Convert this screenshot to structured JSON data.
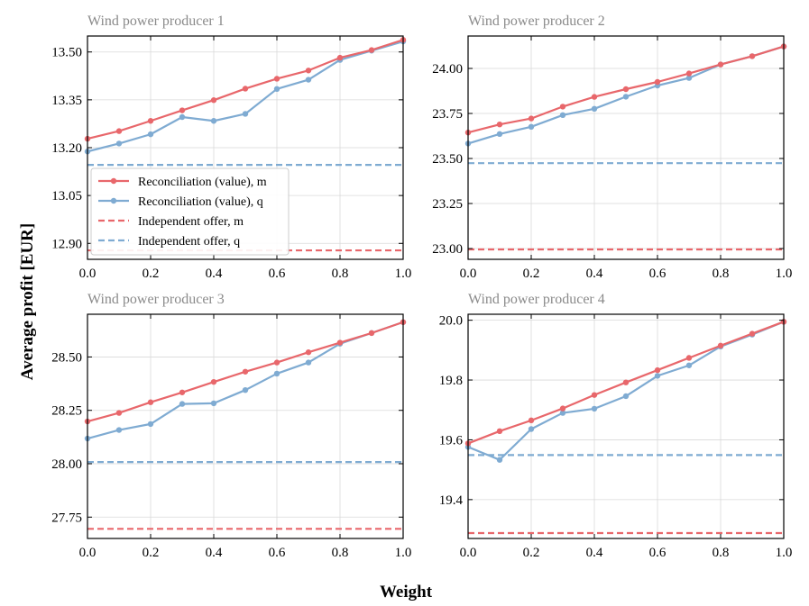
{
  "figure": {
    "ylabel": "Average profit [EUR]",
    "xlabel": "Weight"
  },
  "colors": {
    "m": "#e8676b",
    "q": "#7fabd2",
    "grid": "#d9d9d9",
    "title": "#8a8a8a"
  },
  "legend": {
    "items": [
      {
        "label": "Reconciliation (value), m",
        "style": "solid-marker",
        "color": "#e8676b"
      },
      {
        "label": "Reconciliation (value), q",
        "style": "solid-marker",
        "color": "#7fabd2"
      },
      {
        "label": "Independent offer, m",
        "style": "dashed",
        "color": "#e8676b"
      },
      {
        "label": "Independent offer, q",
        "style": "dashed",
        "color": "#7fabd2"
      }
    ]
  },
  "chart_data": [
    {
      "type": "line",
      "title": "Wind power producer 1",
      "x": [
        0.0,
        0.1,
        0.2,
        0.3,
        0.4,
        0.5,
        0.6,
        0.7,
        0.8,
        0.9,
        1.0
      ],
      "xlim": [
        0.0,
        1.0
      ],
      "xticks": [
        "0.0",
        "0.2",
        "0.4",
        "0.6",
        "0.8",
        "1.0"
      ],
      "ylim": [
        12.85,
        13.55
      ],
      "yticks": [
        "12.90",
        "13.05",
        "13.20",
        "13.35",
        "13.50"
      ],
      "series": [
        {
          "name": "Reconciliation (value), m",
          "values": [
            13.228,
            13.252,
            13.284,
            13.317,
            13.349,
            13.385,
            13.416,
            13.442,
            13.482,
            13.506,
            13.538
          ]
        },
        {
          "name": "Reconciliation (value), q",
          "values": [
            13.188,
            13.213,
            13.242,
            13.296,
            13.284,
            13.306,
            13.384,
            13.413,
            13.475,
            13.504,
            13.533
          ]
        }
      ],
      "hlines": [
        {
          "name": "Independent offer, m",
          "value": 12.878
        },
        {
          "name": "Independent offer, q",
          "value": 13.146
        }
      ],
      "has_legend": true
    },
    {
      "type": "line",
      "title": "Wind power producer 2",
      "x": [
        0.0,
        0.1,
        0.2,
        0.3,
        0.4,
        0.5,
        0.6,
        0.7,
        0.8,
        0.9,
        1.0
      ],
      "xlim": [
        0.0,
        1.0
      ],
      "xticks": [
        "0.0",
        "0.2",
        "0.4",
        "0.6",
        "0.8",
        "1.0"
      ],
      "ylim": [
        22.94,
        24.18
      ],
      "yticks": [
        "23.00",
        "23.25",
        "23.50",
        "23.75",
        "24.00"
      ],
      "series": [
        {
          "name": "Reconciliation (value), m",
          "values": [
            23.644,
            23.689,
            23.722,
            23.788,
            23.842,
            23.885,
            23.925,
            23.972,
            24.022,
            24.068,
            24.122
          ]
        },
        {
          "name": "Reconciliation (value), q",
          "values": [
            23.583,
            23.636,
            23.676,
            23.741,
            23.776,
            23.843,
            23.905,
            23.947,
            24.022,
            24.068,
            24.122
          ]
        }
      ],
      "hlines": [
        {
          "name": "Independent offer, m",
          "value": 22.995
        },
        {
          "name": "Independent offer, q",
          "value": 23.474
        }
      ],
      "has_legend": false
    },
    {
      "type": "line",
      "title": "Wind power producer 3",
      "x": [
        0.0,
        0.1,
        0.2,
        0.3,
        0.4,
        0.5,
        0.6,
        0.7,
        0.8,
        0.9,
        1.0
      ],
      "xlim": [
        0.0,
        1.0
      ],
      "xticks": [
        "0.0",
        "0.2",
        "0.4",
        "0.6",
        "0.8",
        "1.0"
      ],
      "ylim": [
        27.65,
        28.7
      ],
      "yticks": [
        "27.75",
        "28.00",
        "28.25",
        "28.50"
      ],
      "series": [
        {
          "name": "Reconciliation (value), m",
          "values": [
            28.198,
            28.238,
            28.288,
            28.334,
            28.383,
            28.431,
            28.474,
            28.522,
            28.567,
            28.612,
            28.663
          ]
        },
        {
          "name": "Reconciliation (value), q",
          "values": [
            28.118,
            28.158,
            28.186,
            28.28,
            28.283,
            28.345,
            28.422,
            28.474,
            28.562,
            28.612,
            28.663
          ]
        }
      ],
      "hlines": [
        {
          "name": "Independent offer, m",
          "value": 27.695
        },
        {
          "name": "Independent offer, q",
          "value": 28.008
        }
      ],
      "has_legend": false
    },
    {
      "type": "line",
      "title": "Wind power producer 4",
      "x": [
        0.0,
        0.1,
        0.2,
        0.3,
        0.4,
        0.5,
        0.6,
        0.7,
        0.8,
        0.9,
        1.0
      ],
      "xlim": [
        0.0,
        1.0
      ],
      "xticks": [
        "0.0",
        "0.2",
        "0.4",
        "0.6",
        "0.8",
        "1.0"
      ],
      "ylim": [
        19.27,
        20.02
      ],
      "yticks": [
        "19.4",
        "19.6",
        "19.8",
        "20.0"
      ],
      "series": [
        {
          "name": "Reconciliation (value), m",
          "values": [
            19.588,
            19.629,
            19.665,
            19.705,
            19.75,
            19.792,
            19.833,
            19.874,
            19.915,
            19.955,
            19.995
          ]
        },
        {
          "name": "Reconciliation (value), q",
          "values": [
            19.576,
            19.533,
            19.636,
            19.69,
            19.704,
            19.746,
            19.814,
            19.849,
            19.912,
            19.952,
            19.995
          ]
        }
      ],
      "hlines": [
        {
          "name": "Independent offer, m",
          "value": 19.288
        },
        {
          "name": "Independent offer, q",
          "value": 19.549
        }
      ],
      "has_legend": false
    }
  ]
}
